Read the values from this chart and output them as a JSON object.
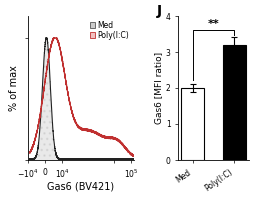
{
  "panel_j_label": "J",
  "bar_categories": [
    "Med",
    "Poly(I:C)"
  ],
  "bar_values": [
    2.0,
    3.2
  ],
  "bar_errors": [
    0.12,
    0.22
  ],
  "bar_colors": [
    "white",
    "black"
  ],
  "bar_edge_colors": [
    "black",
    "black"
  ],
  "ylabel_bar": "Gas6 [MFI ratio]",
  "ylim_bar": [
    0,
    4
  ],
  "yticks_bar": [
    0,
    1,
    2,
    3,
    4
  ],
  "significance": "**",
  "xlabel_flow": "Gas6 (BV421)",
  "ylabel_flow": "% of max",
  "legend_labels": [
    "Med",
    "Poly(I:C)"
  ],
  "bg_color": "#ffffff",
  "title_fontsize": 10,
  "axis_fontsize": 7,
  "tick_fontsize": 5.5
}
